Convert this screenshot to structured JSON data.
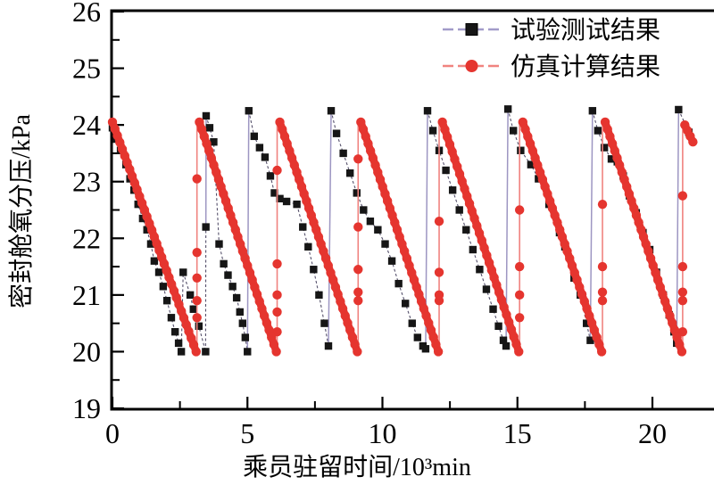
{
  "chart_data": {
    "type": "line",
    "title": "",
    "xlabel": "乘员驻留时间/10³min",
    "ylabel": "密封舱氧分压/kPa",
    "xlim": [
      0,
      22.3
    ],
    "ylim": [
      19,
      26
    ],
    "grid": false,
    "legend_position": "top-right",
    "x_major_ticks": [
      0,
      5,
      10,
      15,
      20
    ],
    "x_minor_ticks": [
      2.5,
      7.5,
      12.5,
      17.5
    ],
    "x_tick_labels": [
      "0",
      "5",
      "10",
      "15",
      "20"
    ],
    "y_major_ticks": [
      19,
      20,
      21,
      22,
      23,
      24,
      25,
      26
    ],
    "y_minor_ticks": [
      19.5,
      20.5,
      21.5,
      22.5,
      23.5,
      24.5,
      25.5
    ],
    "y_tick_labels": [
      "26",
      "25",
      "24",
      "23",
      "22",
      "21",
      "20",
      "19"
    ],
    "colors": {
      "measured_marker": "#161616",
      "measured_line": "#55506b",
      "measured_jump_line": "#9d96c2",
      "simulated": "#e5352f",
      "simulated_rise_line": "#f0837f",
      "axis": "#000000"
    },
    "series": [
      {
        "name": "试验测试结果",
        "marker": "square",
        "color": "#161616",
        "line_color": "#55506b",
        "jump_color": "#9d96c2",
        "cycles": [
          [
            [
              0,
              23.95
            ],
            [
              0.15,
              23.75
            ],
            [
              0.3,
              23.55
            ],
            [
              0.5,
              23.3
            ],
            [
              0.65,
              23.05
            ],
            [
              0.8,
              22.85
            ],
            [
              0.95,
              22.6
            ],
            [
              1.12,
              22.35
            ],
            [
              1.28,
              22.15
            ],
            [
              1.42,
              21.9
            ],
            [
              1.55,
              21.6
            ],
            [
              1.72,
              21.4
            ],
            [
              1.88,
              21.15
            ],
            [
              2.02,
              20.9
            ],
            [
              2.18,
              20.6
            ],
            [
              2.32,
              20.35
            ],
            [
              2.45,
              20.15
            ],
            [
              2.55,
              20.0
            ],
            [
              2.62,
              21.4
            ],
            [
              2.88,
              21.0
            ],
            [
              3.0,
              20.75
            ],
            [
              3.2,
              20.45
            ],
            [
              3.45,
              20.0
            ],
            [
              3.46,
              22.2
            ]
          ],
          [
            [
              3.47,
              24.16
            ],
            [
              3.6,
              23.95
            ],
            [
              3.75,
              23.7
            ],
            [
              3.95,
              21.9
            ],
            [
              4.12,
              21.55
            ],
            [
              4.28,
              21.35
            ],
            [
              4.45,
              21.15
            ],
            [
              4.6,
              20.95
            ],
            [
              4.72,
              20.7
            ],
            [
              4.82,
              20.5
            ],
            [
              4.92,
              20.25
            ],
            [
              5.0,
              20.0
            ]
          ],
          [
            [
              5.05,
              24.25
            ],
            [
              5.25,
              23.8
            ],
            [
              5.45,
              23.6
            ],
            [
              5.65,
              23.43
            ],
            [
              5.85,
              23.1
            ],
            [
              6.0,
              22.8
            ],
            [
              6.2,
              22.7
            ],
            [
              6.45,
              22.65
            ],
            [
              6.83,
              22.6
            ],
            [
              7.05,
              22.2
            ],
            [
              7.25,
              21.85
            ],
            [
              7.45,
              21.45
            ],
            [
              7.65,
              21.0
            ],
            [
              7.85,
              20.5
            ],
            [
              8.0,
              20.1
            ]
          ],
          [
            [
              8.1,
              24.25
            ],
            [
              8.3,
              23.85
            ],
            [
              8.55,
              23.5
            ],
            [
              8.8,
              23.15
            ],
            [
              9.05,
              22.8
            ],
            [
              9.3,
              22.5
            ],
            [
              9.55,
              22.3
            ],
            [
              9.83,
              22.15
            ],
            [
              10.1,
              21.9
            ],
            [
              10.35,
              21.6
            ],
            [
              10.6,
              21.2
            ],
            [
              10.85,
              20.85
            ],
            [
              11.1,
              20.5
            ],
            [
              11.3,
              20.25
            ],
            [
              11.5,
              20.1
            ],
            [
              11.6,
              20.05
            ]
          ],
          [
            [
              11.67,
              24.25
            ],
            [
              11.87,
              23.9
            ],
            [
              12.1,
              23.55
            ],
            [
              12.35,
              23.2
            ],
            [
              12.6,
              22.85
            ],
            [
              12.85,
              22.5
            ],
            [
              13.1,
              22.15
            ],
            [
              13.35,
              21.8
            ],
            [
              13.6,
              21.45
            ],
            [
              13.85,
              21.1
            ],
            [
              14.1,
              20.75
            ],
            [
              14.3,
              20.45
            ],
            [
              14.48,
              20.2
            ],
            [
              14.58,
              20.1
            ]
          ],
          [
            [
              14.65,
              24.28
            ],
            [
              14.85,
              23.9
            ],
            [
              15.12,
              23.55
            ],
            [
              15.5,
              23.3
            ],
            [
              15.78,
              23.05
            ],
            [
              16.17,
              22.6
            ],
            [
              16.56,
              22.1
            ],
            [
              16.76,
              21.85
            ],
            [
              17.1,
              21.3
            ],
            [
              17.33,
              21.0
            ],
            [
              17.56,
              20.5
            ],
            [
              17.7,
              20.2
            ]
          ],
          [
            [
              17.78,
              24.25
            ],
            [
              17.98,
              23.9
            ],
            [
              18.22,
              23.6
            ],
            [
              18.48,
              23.4
            ],
            [
              18.7,
              23.35
            ],
            [
              18.92,
              23.1
            ],
            [
              19.15,
              22.75
            ],
            [
              19.4,
              22.45
            ],
            [
              19.65,
              22.1
            ],
            [
              19.9,
              21.8
            ],
            [
              20.15,
              21.4
            ],
            [
              20.4,
              21.0
            ],
            [
              20.62,
              20.65
            ],
            [
              20.8,
              20.35
            ],
            [
              20.9,
              20.15
            ]
          ],
          [
            [
              20.97,
              24.27
            ],
            [
              21.35,
              23.87
            ]
          ]
        ]
      },
      {
        "name": "仿真计算结果",
        "marker": "circle",
        "color": "#e5352f",
        "rise_color": "#f0837f",
        "drop_top": 24.05,
        "drop_bottom": 20.0,
        "cycles": [
          {
            "drop": [
              [
                0,
                24.05
              ],
              [
                3.1,
                20.0
              ]
            ],
            "rise_x": 3.13,
            "rise_values": [
              20.6,
              20.9,
              21.3,
              21.75,
              23.05
            ]
          },
          {
            "drop": [
              [
                3.22,
                24.05
              ],
              [
                6.07,
                20.0
              ]
            ],
            "rise_x": 6.1,
            "rise_values": [
              20.35,
              20.7,
              21.0,
              21.55,
              23.2
            ]
          },
          {
            "drop": [
              [
                6.2,
                24.05
              ],
              [
                9.07,
                20.0
              ]
            ],
            "rise_x": 9.1,
            "rise_values": [
              20.9,
              21.05,
              21.45,
              22.2,
              23.4
            ]
          },
          {
            "drop": [
              [
                9.2,
                24.05
              ],
              [
                12.07,
                20.0
              ]
            ],
            "rise_x": 12.1,
            "rise_values": [
              20.9,
              21.0,
              21.4,
              22.3
            ]
          },
          {
            "drop": [
              [
                12.22,
                24.05
              ],
              [
                15.05,
                20.0
              ]
            ],
            "rise_x": 15.08,
            "rise_values": [
              20.6,
              21.0,
              21.5,
              22.5
            ]
          },
          {
            "drop": [
              [
                15.2,
                24.05
              ],
              [
                18.12,
                20.0
              ]
            ],
            "rise_x": 18.15,
            "rise_values": [
              20.9,
              21.05,
              21.5,
              22.6
            ]
          },
          {
            "drop": [
              [
                18.25,
                24.05
              ],
              [
                21.09,
                20.0
              ]
            ],
            "rise_x": 21.12,
            "rise_values": [
              20.35,
              20.9,
              21.05,
              21.5,
              22.75
            ]
          },
          {
            "drop": [
              [
                21.2,
                24.0
              ],
              [
                21.5,
                23.7
              ]
            ],
            "rise_x": null,
            "rise_values": []
          }
        ]
      }
    ]
  }
}
